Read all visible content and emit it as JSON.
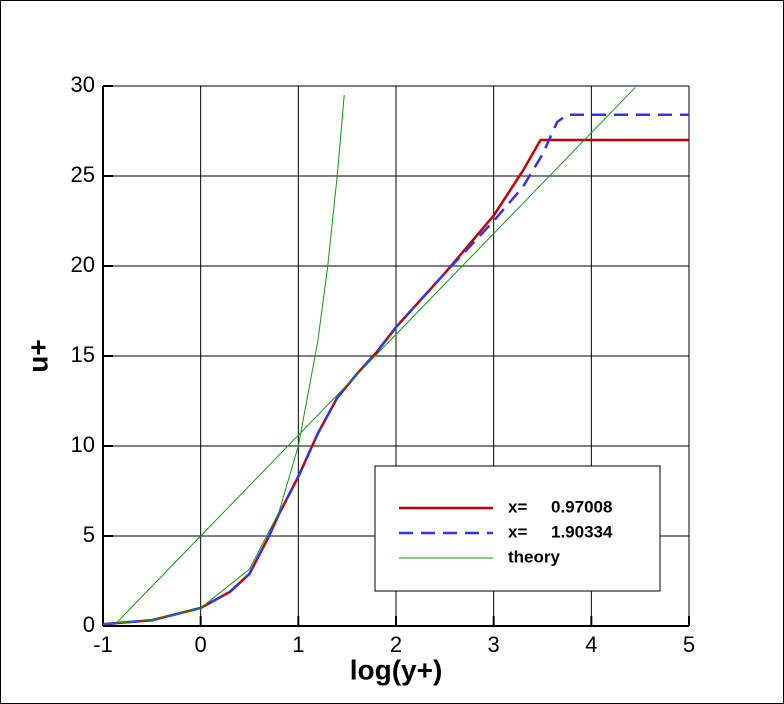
{
  "chart_data": {
    "type": "line",
    "xlabel": "log(y+)",
    "ylabel": "u+",
    "xlim": [
      -1,
      5
    ],
    "xticks": [
      -1,
      0,
      1,
      2,
      3,
      4,
      5
    ],
    "ylim": [
      0,
      30
    ],
    "yticks": [
      0,
      5,
      10,
      15,
      20,
      25,
      30
    ],
    "grid": true,
    "legend": "lower right",
    "series": [
      {
        "name": "x=     0.97008",
        "color": "#c00000",
        "dash": false,
        "x": [
          -1,
          -0.5,
          0,
          0.3,
          0.5,
          0.7,
          0.8,
          1.0,
          1.2,
          1.4,
          1.6,
          1.8,
          2.0,
          2.5,
          3.0,
          3.3,
          3.48,
          5
        ],
        "values": [
          0.1,
          0.32,
          1,
          1.9,
          2.9,
          5,
          6.2,
          8.3,
          10.7,
          12.7,
          14,
          15.2,
          16.6,
          19.6,
          22.8,
          25.3,
          27,
          27
        ]
      },
      {
        "name": "x=     1.90334",
        "color": "#3333ee",
        "dash": true,
        "x": [
          -1,
          -0.5,
          0,
          0.3,
          0.5,
          0.7,
          0.8,
          1.0,
          1.2,
          1.4,
          1.6,
          1.8,
          2.0,
          2.5,
          3.0,
          3.3,
          3.5,
          3.65,
          3.75,
          5
        ],
        "values": [
          0.1,
          0.32,
          1,
          1.9,
          2.9,
          5,
          6.2,
          8.3,
          10.7,
          12.7,
          14,
          15.2,
          16.6,
          19.6,
          22.5,
          24.4,
          26.2,
          28,
          28.4,
          28.4
        ]
      },
      {
        "name": "theory",
        "color": "#119911",
        "dash": false,
        "x": [
          -1,
          -0.5,
          0,
          0.5,
          0.8,
          1,
          1.2,
          1.3,
          1.4,
          1.47,
          null,
          -0.85,
          4.45
        ],
        "values": [
          0.1,
          0.32,
          1,
          3.16,
          6.31,
          10,
          15.85,
          19.95,
          25.12,
          29.5,
          null,
          0.24,
          29.92
        ]
      }
    ]
  }
}
